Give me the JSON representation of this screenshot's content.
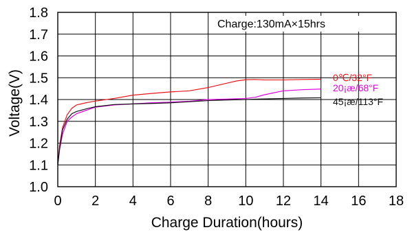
{
  "chart_data": {
    "type": "line",
    "title": "",
    "xlabel": "Charge Duration(hours)",
    "ylabel": "Voltage(V)",
    "annotation": "Charge:130mA×15hrs",
    "xlim": [
      0,
      18
    ],
    "ylim": [
      1.0,
      1.8
    ],
    "xticks": [
      "0",
      "2",
      "4",
      "6",
      "8",
      "10",
      "12",
      "14",
      "16",
      "18"
    ],
    "yticks": [
      "1.0",
      "1.1",
      "1.2",
      "1.3",
      "1.4",
      "1.5",
      "1.6",
      "1.7",
      "1.8"
    ],
    "grid": true,
    "series": [
      {
        "name": "0℃/32°F",
        "color": "#e8141b",
        "x": [
          0,
          0.1,
          0.25,
          0.5,
          0.75,
          1,
          1.5,
          2,
          3,
          4,
          5,
          6,
          7,
          8,
          9,
          9.5,
          10,
          10.5,
          11,
          12,
          13,
          14
        ],
        "y": [
          1.1,
          1.19,
          1.27,
          1.33,
          1.36,
          1.375,
          1.385,
          1.393,
          1.405,
          1.42,
          1.428,
          1.435,
          1.44,
          1.455,
          1.475,
          1.485,
          1.491,
          1.492,
          1.49,
          1.49,
          1.492,
          1.493
        ]
      },
      {
        "name": "20¡æ/68°F",
        "color": "#e000e0",
        "x": [
          0,
          0.1,
          0.25,
          0.5,
          0.75,
          1,
          1.5,
          2,
          3,
          4,
          5,
          6,
          7,
          8,
          9,
          10,
          10.5,
          11,
          12,
          13,
          14
        ],
        "y": [
          1.1,
          1.17,
          1.24,
          1.3,
          1.32,
          1.335,
          1.35,
          1.365,
          1.375,
          1.38,
          1.385,
          1.388,
          1.392,
          1.4,
          1.402,
          1.405,
          1.41,
          1.422,
          1.44,
          1.445,
          1.448
        ]
      },
      {
        "name": "45¡æ/113°F",
        "color": "#111111",
        "x": [
          0,
          0.1,
          0.25,
          0.5,
          0.75,
          1,
          1.5,
          2,
          3,
          4,
          5,
          6,
          7,
          8,
          9,
          10,
          11,
          12,
          13,
          14
        ],
        "y": [
          1.1,
          1.18,
          1.26,
          1.31,
          1.335,
          1.345,
          1.357,
          1.367,
          1.377,
          1.38,
          1.382,
          1.385,
          1.39,
          1.395,
          1.398,
          1.4,
          1.403,
          1.405,
          1.407,
          1.408
        ]
      }
    ]
  }
}
